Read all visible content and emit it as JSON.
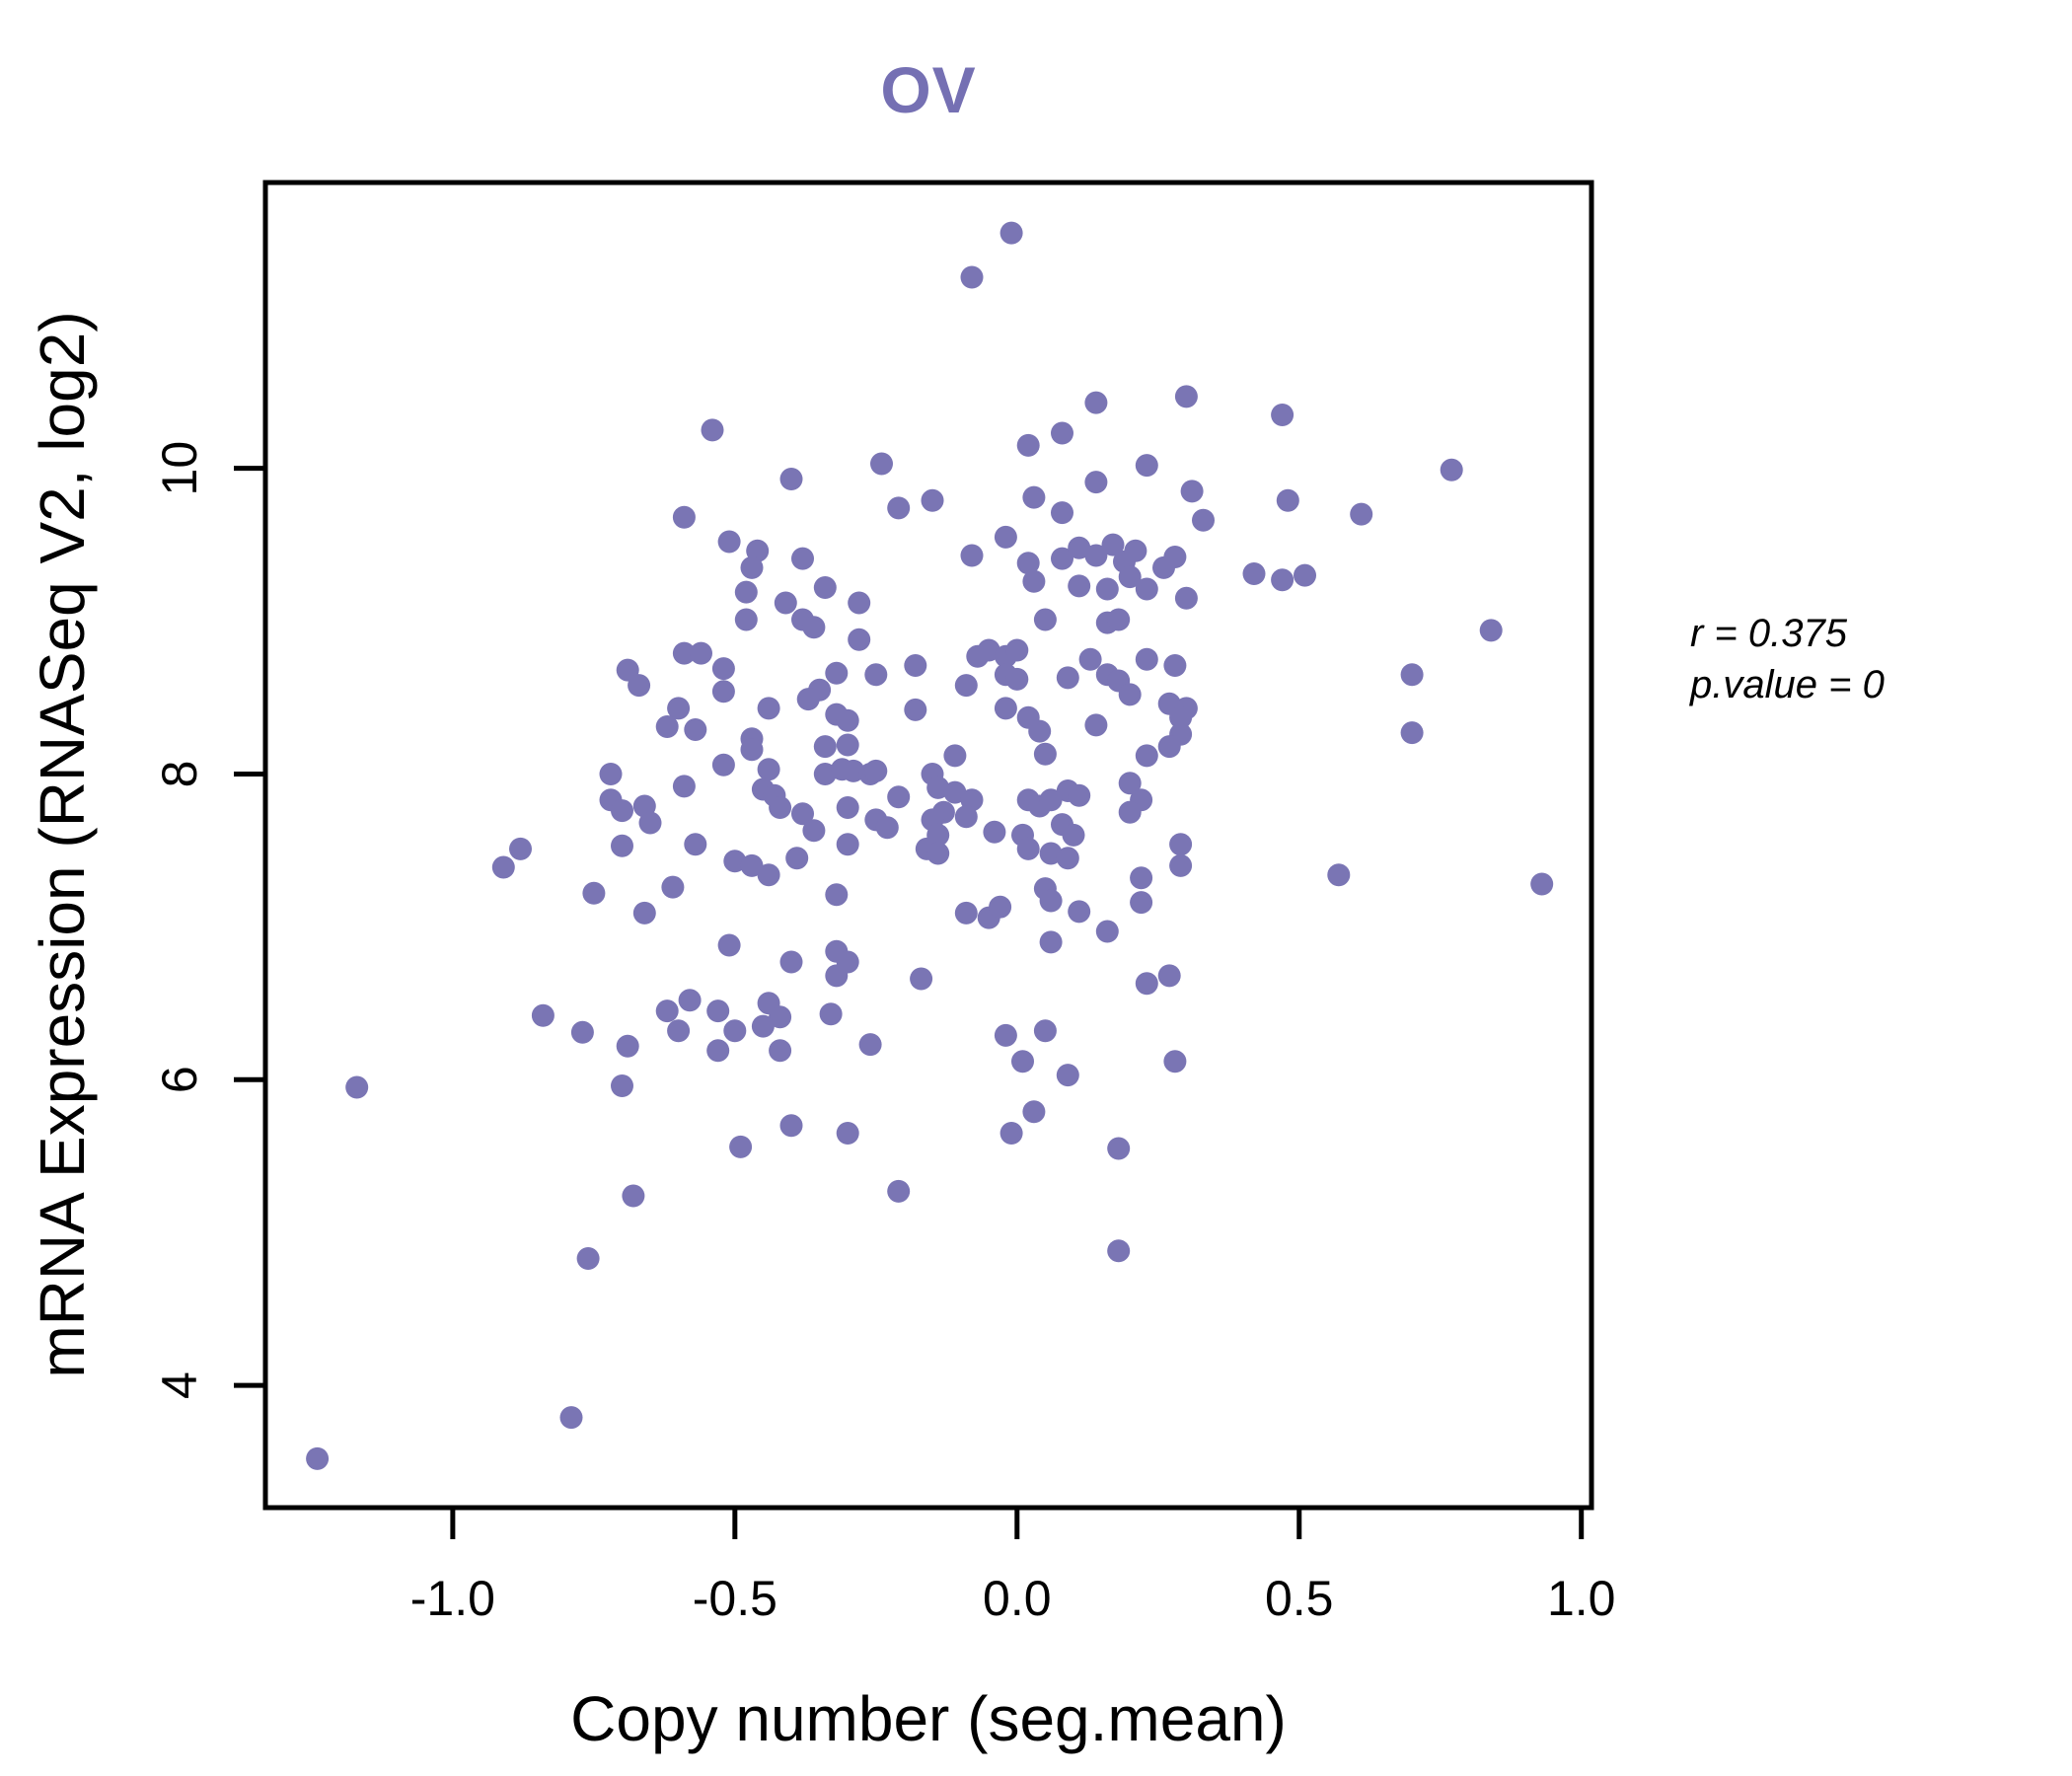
{
  "title": "OV",
  "colors": {
    "point": "#7a75b4",
    "title": "#7570b3",
    "axis": "#000000",
    "background": "#ffffff"
  },
  "annotation": {
    "line1": "r = 0.375",
    "line2": "p.value = 0"
  },
  "chart_data": {
    "type": "scatter",
    "title": "OV",
    "xlabel": "Copy number (seg.mean)",
    "ylabel": "mRNA Expression (RNASeq V2, log2)",
    "xlim": [
      -1.332,
      1.018
    ],
    "ylim": [
      3.2,
      11.87
    ],
    "xticks": [
      -1.0,
      -0.5,
      0.0,
      0.5,
      1.0
    ],
    "xtick_labels": [
      "-1.0",
      "-0.5",
      "0.0",
      "0.5",
      "1.0"
    ],
    "yticks": [
      4,
      6,
      8,
      10
    ],
    "ytick_labels": [
      "4",
      "6",
      "8",
      "10"
    ],
    "grid": false,
    "legend": null,
    "annotations": [
      "r = 0.375",
      "p.value = 0"
    ],
    "correlation_r": 0.375,
    "p_value": 0,
    "points": [
      [
        -0.01,
        11.54
      ],
      [
        -0.08,
        11.25
      ],
      [
        0.14,
        10.43
      ],
      [
        0.08,
        10.23
      ],
      [
        0.02,
        10.15
      ],
      [
        -0.54,
        10.25
      ],
      [
        -0.24,
        10.03
      ],
      [
        -0.4,
        9.93
      ],
      [
        -0.21,
        9.74
      ],
      [
        -0.15,
        9.79
      ],
      [
        0.03,
        9.81
      ],
      [
        0.08,
        9.71
      ],
      [
        0.14,
        9.91
      ],
      [
        0.23,
        10.02
      ],
      [
        0.3,
        10.47
      ],
      [
        0.47,
        10.35
      ],
      [
        0.31,
        9.85
      ],
      [
        0.77,
        9.99
      ],
      [
        0.48,
        9.79
      ],
      [
        0.61,
        9.7
      ],
      [
        0.33,
        9.66
      ],
      [
        -0.59,
        9.68
      ],
      [
        -0.59,
        8.79
      ],
      [
        -0.56,
        8.79
      ],
      [
        -0.69,
        8.68
      ],
      [
        -0.67,
        8.58
      ],
      [
        -0.6,
        8.43
      ],
      [
        -0.62,
        8.31
      ],
      [
        -0.57,
        8.29
      ],
      [
        -0.72,
        8.0
      ],
      [
        -0.72,
        7.83
      ],
      [
        -0.7,
        7.76
      ],
      [
        -0.66,
        7.79
      ],
      [
        -0.65,
        7.68
      ],
      [
        -0.59,
        7.92
      ],
      [
        -0.57,
        7.54
      ],
      [
        -0.51,
        9.52
      ],
      [
        -0.46,
        9.46
      ],
      [
        -0.47,
        9.35
      ],
      [
        -0.38,
        9.41
      ],
      [
        -0.02,
        9.55
      ],
      [
        -0.08,
        9.43
      ],
      [
        0.02,
        9.38
      ],
      [
        0.03,
        9.26
      ],
      [
        0.08,
        9.41
      ],
      [
        0.11,
        9.48
      ],
      [
        0.14,
        9.43
      ],
      [
        0.17,
        9.5
      ],
      [
        0.19,
        9.39
      ],
      [
        0.21,
        9.46
      ],
      [
        0.11,
        9.23
      ],
      [
        0.16,
        9.21
      ],
      [
        0.2,
        9.29
      ],
      [
        0.23,
        9.21
      ],
      [
        -0.34,
        9.22
      ],
      [
        -0.28,
        9.12
      ],
      [
        -0.41,
        9.12
      ],
      [
        -0.48,
        9.19
      ],
      [
        -0.48,
        9.01
      ],
      [
        -0.38,
        9.01
      ],
      [
        -0.36,
        8.96
      ],
      [
        0.05,
        9.01
      ],
      [
        0.16,
        8.99
      ],
      [
        0.18,
        9.01
      ],
      [
        -0.28,
        8.88
      ],
      [
        -0.07,
        8.77
      ],
      [
        -0.05,
        8.81
      ],
      [
        -0.02,
        8.77
      ],
      [
        0.0,
        8.81
      ],
      [
        0.13,
        8.75
      ],
      [
        -0.52,
        8.69
      ],
      [
        -0.52,
        8.54
      ],
      [
        -0.32,
        8.66
      ],
      [
        -0.25,
        8.65
      ],
      [
        -0.18,
        8.71
      ],
      [
        -0.09,
        8.58
      ],
      [
        -0.02,
        8.65
      ],
      [
        0.0,
        8.62
      ],
      [
        0.09,
        8.63
      ],
      [
        0.16,
        8.65
      ],
      [
        0.18,
        8.61
      ],
      [
        0.2,
        8.52
      ],
      [
        0.23,
        8.75
      ],
      [
        -0.35,
        8.55
      ],
      [
        -0.37,
        8.49
      ],
      [
        -0.18,
        8.42
      ],
      [
        -0.44,
        8.43
      ],
      [
        -0.32,
        8.39
      ],
      [
        -0.3,
        8.35
      ],
      [
        -0.02,
        8.43
      ],
      [
        0.02,
        8.37
      ],
      [
        0.04,
        8.28
      ],
      [
        0.14,
        8.32
      ],
      [
        -0.47,
        8.23
      ],
      [
        -0.47,
        8.16
      ],
      [
        -0.34,
        8.18
      ],
      [
        -0.3,
        8.19
      ],
      [
        0.05,
        8.13
      ],
      [
        -0.52,
        8.06
      ],
      [
        -0.11,
        8.12
      ],
      [
        -0.44,
        8.03
      ],
      [
        -0.45,
        7.9
      ],
      [
        -0.43,
        7.86
      ],
      [
        -0.34,
        8.0
      ],
      [
        -0.31,
        8.03
      ],
      [
        -0.29,
        8.02
      ],
      [
        -0.26,
        8.0
      ],
      [
        -0.25,
        8.02
      ],
      [
        -0.15,
        8.0
      ],
      [
        -0.14,
        7.91
      ],
      [
        -0.11,
        7.88
      ],
      [
        -0.13,
        7.75
      ],
      [
        -0.21,
        7.85
      ],
      [
        -0.08,
        7.83
      ],
      [
        -0.09,
        7.72
      ],
      [
        0.02,
        7.83
      ],
      [
        0.04,
        7.79
      ],
      [
        0.06,
        7.83
      ],
      [
        0.09,
        7.89
      ],
      [
        0.11,
        7.86
      ],
      [
        0.2,
        7.94
      ],
      [
        0.22,
        7.83
      ],
      [
        -0.42,
        7.78
      ],
      [
        -0.38,
        7.74
      ],
      [
        -0.36,
        7.63
      ],
      [
        -0.3,
        7.78
      ],
      [
        -0.25,
        7.7
      ],
      [
        -0.23,
        7.65
      ],
      [
        -0.15,
        7.7
      ],
      [
        -0.14,
        7.6
      ],
      [
        -0.04,
        7.62
      ],
      [
        0.01,
        7.6
      ],
      [
        0.08,
        7.67
      ],
      [
        0.1,
        7.6
      ],
      [
        0.2,
        7.75
      ],
      [
        0.28,
        9.42
      ],
      [
        0.26,
        9.35
      ],
      [
        0.3,
        9.15
      ],
      [
        0.42,
        9.31
      ],
      [
        0.47,
        9.27
      ],
      [
        0.51,
        9.3
      ],
      [
        0.84,
        8.94
      ],
      [
        0.7,
        8.65
      ],
      [
        0.28,
        8.71
      ],
      [
        0.27,
        8.46
      ],
      [
        0.3,
        8.43
      ],
      [
        0.29,
        8.37
      ],
      [
        0.7,
        8.27
      ],
      [
        0.29,
        8.26
      ],
      [
        0.27,
        8.18
      ],
      [
        0.23,
        8.12
      ],
      [
        -0.88,
        7.51
      ],
      [
        -0.91,
        7.39
      ],
      [
        -0.7,
        7.53
      ],
      [
        -0.75,
        7.22
      ],
      [
        -0.66,
        7.09
      ],
      [
        -0.61,
        7.26
      ],
      [
        -0.84,
        6.42
      ],
      [
        -0.77,
        6.31
      ],
      [
        -0.69,
        6.22
      ],
      [
        -0.62,
        6.45
      ],
      [
        -0.58,
        6.52
      ],
      [
        -0.6,
        6.32
      ],
      [
        -0.7,
        5.96
      ],
      [
        -1.17,
        5.95
      ],
      [
        -0.5,
        7.43
      ],
      [
        -0.47,
        7.4
      ],
      [
        -0.44,
        7.34
      ],
      [
        -0.39,
        7.45
      ],
      [
        -0.3,
        7.54
      ],
      [
        -0.16,
        7.51
      ],
      [
        -0.14,
        7.48
      ],
      [
        0.02,
        7.51
      ],
      [
        0.06,
        7.48
      ],
      [
        0.09,
        7.45
      ],
      [
        -0.09,
        7.09
      ],
      [
        -0.05,
        7.06
      ],
      [
        -0.03,
        7.13
      ],
      [
        0.05,
        7.25
      ],
      [
        0.06,
        7.17
      ],
      [
        0.11,
        7.1
      ],
      [
        0.16,
        6.97
      ],
      [
        0.06,
        6.9
      ],
      [
        -0.32,
        7.21
      ],
      [
        -0.51,
        6.88
      ],
      [
        -0.4,
        6.77
      ],
      [
        -0.32,
        6.84
      ],
      [
        -0.3,
        6.77
      ],
      [
        -0.32,
        6.68
      ],
      [
        -0.17,
        6.66
      ],
      [
        -0.53,
        6.45
      ],
      [
        -0.5,
        6.32
      ],
      [
        -0.53,
        6.19
      ],
      [
        -0.44,
        6.5
      ],
      [
        -0.42,
        6.41
      ],
      [
        -0.45,
        6.35
      ],
      [
        -0.33,
        6.43
      ],
      [
        -0.42,
        6.19
      ],
      [
        -0.26,
        6.23
      ],
      [
        -0.02,
        6.29
      ],
      [
        0.05,
        6.32
      ],
      [
        0.01,
        6.12
      ],
      [
        0.09,
        6.03
      ],
      [
        0.03,
        5.79
      ],
      [
        -0.01,
        5.65
      ],
      [
        -0.4,
        5.7
      ],
      [
        -0.3,
        5.65
      ],
      [
        -0.49,
        5.56
      ],
      [
        0.18,
        5.55
      ],
      [
        0.29,
        7.54
      ],
      [
        0.29,
        7.4
      ],
      [
        0.22,
        7.32
      ],
      [
        0.22,
        7.16
      ],
      [
        0.57,
        7.34
      ],
      [
        0.93,
        7.28
      ],
      [
        0.27,
        6.68
      ],
      [
        0.23,
        6.63
      ],
      [
        0.28,
        6.12
      ],
      [
        -0.68,
        5.24
      ],
      [
        -0.76,
        4.83
      ],
      [
        -0.79,
        3.79
      ],
      [
        -1.24,
        3.52
      ],
      [
        -0.21,
        5.27
      ],
      [
        0.18,
        4.88
      ]
    ]
  }
}
